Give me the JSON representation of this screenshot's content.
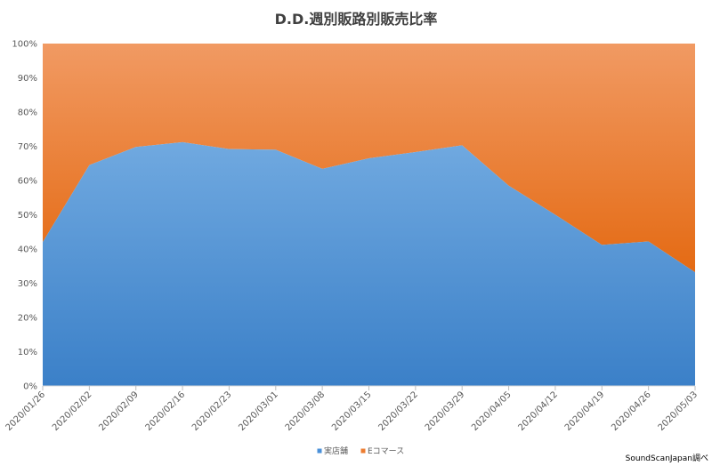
{
  "chart_data": {
    "type": "area",
    "stacking": "percent",
    "title": "D.D.週別販路別販売比率",
    "categories": [
      "2020/01/26",
      "2020/02/02",
      "2020/02/09",
      "2020/02/16",
      "2020/02/23",
      "2020/03/01",
      "2020/03/08",
      "2020/03/15",
      "2020/03/22",
      "2020/03/29",
      "2020/04/05",
      "2020/04/12",
      "2020/04/19",
      "2020/04/26",
      "2020/05/03"
    ],
    "series": [
      {
        "name": "実店舗",
        "color": "#4a90d9",
        "values": [
          42,
          64.5,
          69.8,
          71.2,
          69.2,
          69,
          63.4,
          66.5,
          68.3,
          70.3,
          58.5,
          50,
          41.2,
          42.2,
          33.2
        ]
      },
      {
        "name": "Eコマース",
        "color": "#ed7d31",
        "values": [
          58,
          35.5,
          30.2,
          28.8,
          30.8,
          31,
          36.6,
          33.5,
          31.7,
          29.7,
          41.5,
          50,
          58.8,
          57.8,
          66.8
        ]
      }
    ],
    "y_ticks": [
      "0%",
      "10%",
      "20%",
      "30%",
      "40%",
      "50%",
      "60%",
      "70%",
      "80%",
      "90%",
      "100%"
    ],
    "ylim": [
      0,
      100
    ],
    "xlabel": "",
    "ylabel": "",
    "grid": false,
    "legend_position": "bottom"
  },
  "source_note": "SoundScanJapan調べ"
}
